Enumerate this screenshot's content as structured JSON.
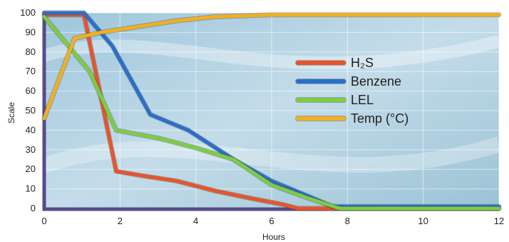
{
  "chart_data": {
    "type": "line",
    "xlabel": "Hours",
    "ylabel": "Scale",
    "xlim": [
      0,
      12
    ],
    "ylim": [
      0,
      100
    ],
    "x_ticks": [
      0,
      2,
      4,
      6,
      8,
      10,
      12
    ],
    "y_ticks": [
      0,
      10,
      20,
      30,
      40,
      50,
      60,
      70,
      80,
      90,
      100
    ],
    "grid": true,
    "legend_position": "center-right",
    "series": [
      {
        "name": "H₂S",
        "color": "#e8542a",
        "points": [
          [
            0,
            99
          ],
          [
            1.05,
            99
          ],
          [
            1.9,
            19
          ],
          [
            2.5,
            17
          ],
          [
            3.5,
            14
          ],
          [
            4.5,
            9
          ],
          [
            5.5,
            5
          ],
          [
            6.3,
            2
          ],
          [
            6.7,
            0
          ],
          [
            8,
            0
          ],
          [
            10,
            0
          ],
          [
            12,
            0
          ]
        ]
      },
      {
        "name": "Benzene",
        "color": "#2a6fc9",
        "points": [
          [
            0,
            100
          ],
          [
            1.05,
            100
          ],
          [
            1.8,
            83
          ],
          [
            2.8,
            48
          ],
          [
            3.8,
            40
          ],
          [
            5,
            25
          ],
          [
            6,
            14
          ],
          [
            7,
            6
          ],
          [
            7.6,
            1
          ],
          [
            8,
            1
          ],
          [
            10,
            1
          ],
          [
            12,
            1
          ]
        ]
      },
      {
        "name": "LEL",
        "color": "#7dcc44",
        "points": [
          [
            0,
            98
          ],
          [
            1.2,
            70
          ],
          [
            1.9,
            40
          ],
          [
            3.0,
            36
          ],
          [
            4.0,
            31
          ],
          [
            5.0,
            25
          ],
          [
            6.0,
            12
          ],
          [
            7.0,
            5
          ],
          [
            7.8,
            0
          ],
          [
            8,
            0
          ],
          [
            10,
            0
          ],
          [
            12,
            0
          ]
        ]
      },
      {
        "name": "Temp (°C)",
        "color": "#f0b020",
        "points": [
          [
            0,
            46
          ],
          [
            0.8,
            87
          ],
          [
            1.5,
            90
          ],
          [
            2.5,
            93
          ],
          [
            3.5,
            96
          ],
          [
            4.5,
            98
          ],
          [
            6,
            99
          ],
          [
            8,
            99
          ],
          [
            10,
            99
          ],
          [
            12,
            99
          ]
        ]
      }
    ]
  }
}
